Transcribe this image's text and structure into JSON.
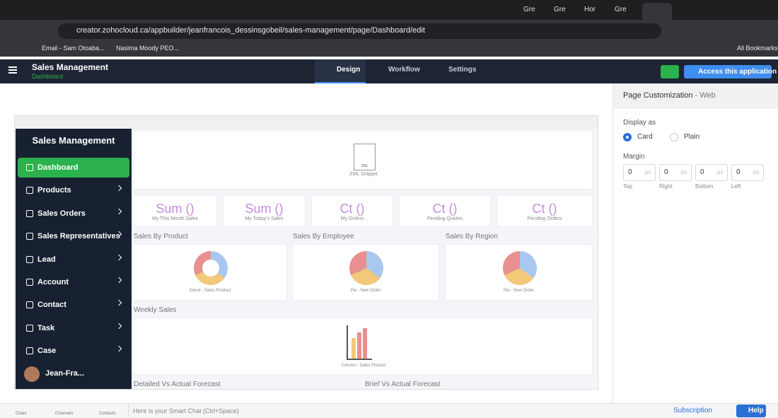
{
  "browser": {
    "tabs": [
      "Gre",
      "Gre",
      "Hor",
      "Gre"
    ],
    "url": "creator.zohocloud.ca/appbuilder/jeanfrancois_dessinsgobeil/sales-management/page/Dashboard/edit",
    "bookmarks": [
      "Email - Sam Otoaba...",
      "Nasima Moody PEO..."
    ],
    "all_bookmarks": "All Bookmarks"
  },
  "app_header": {
    "app_name": "Sales Management",
    "page": "Dashboard",
    "tabs": [
      "Design",
      "Workflow",
      "Settings"
    ],
    "access_button": "Access this application"
  },
  "preview": {
    "sidebar_title": "Sales Management",
    "menu": [
      "Dashboard",
      "Products",
      "Sales Orders",
      "Sales Representatives",
      "Lead",
      "Account",
      "Contact",
      "Task",
      "Case"
    ],
    "user": "Jean-Fra...",
    "snippet": {
      "icon": "ZML",
      "label": "ZML Snippet"
    },
    "kpis": [
      {
        "value": "Sum ()",
        "label": "My This Month Sales"
      },
      {
        "value": "Sum ()",
        "label": "My Today's Sales"
      },
      {
        "value": "Ct ()",
        "label": "My Orders"
      },
      {
        "value": "Ct ()",
        "label": "Pending Quotes"
      },
      {
        "value": "Ct ()",
        "label": "Pending Orders"
      }
    ],
    "charts": [
      {
        "title": "Sales By Product",
        "caption": "Donut - Sales Product"
      },
      {
        "title": "Sales By Employee",
        "caption": "Pie - New Order"
      },
      {
        "title": "Sales By Region",
        "caption": "Pie - New Order"
      }
    ],
    "weekly": {
      "title": "Weekly Sales",
      "caption": "Column - Sales Product"
    },
    "bottom_titles": [
      "Detailed Vs Actual Forecast",
      "Brief Vs Actual Forecast"
    ]
  },
  "panel": {
    "title": "Page Customization",
    "subtitle": "- Web",
    "display_as": "Display as",
    "options": [
      "Card",
      "Plain"
    ],
    "margin": "Margin",
    "fields": [
      {
        "value": "0",
        "unit": "px",
        "label": "Top"
      },
      {
        "value": "0",
        "unit": "px",
        "label": "Right"
      },
      {
        "value": "0",
        "unit": "px",
        "label": "Bottom"
      },
      {
        "value": "0",
        "unit": "px",
        "label": "Left"
      }
    ]
  },
  "footer": {
    "items": [
      "Chats",
      "Channels",
      "Contacts"
    ],
    "chat_placeholder": "Here is your Smart Chat (Ctrl+Space)",
    "subscription": "Subscription",
    "help": "Help"
  }
}
